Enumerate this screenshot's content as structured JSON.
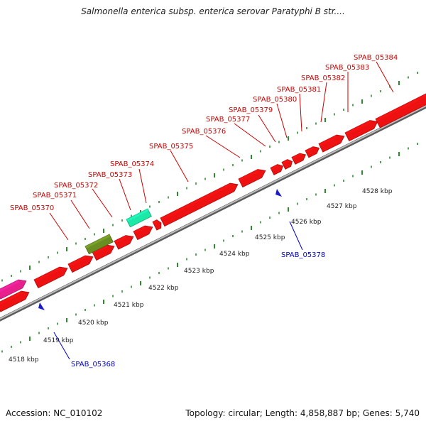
{
  "title": "Salmonella enterica subsp. enterica serovar Paratyphi B str....",
  "footer": {
    "accession": "Accession: NC_010102",
    "summary": "Topology: circular; Length: 4,858,887 bp; Genes: 5,740"
  },
  "colors": {
    "gene_red": "#ee1111",
    "gene_magenta": "#e8208e",
    "gene_olive": "#6b8e23",
    "gene_aqua": "#1de9a6",
    "tick_green": "#2e8b2e",
    "label_red": "#cc0000",
    "label_blue": "#0000cc",
    "backbone": "#999999"
  },
  "scale_labels": [
    "4518 kbp",
    "4519 kbp",
    "4520 kbp",
    "4521 kbp",
    "4522 kbp",
    "4523 kbp",
    "4524 kbp",
    "4525 kbp",
    "4526 kbp",
    "4527 kbp",
    "4528 kbp"
  ],
  "top_labels": [
    "SPAB_05370",
    "SPAB_05371",
    "SPAB_05372",
    "SPAB_05373",
    "SPAB_05374",
    "SPAB_05375",
    "SPAB_05376",
    "SPAB_05377",
    "SPAB_05379",
    "SPAB_05380",
    "SPAB_05381",
    "SPAB_05382",
    "SPAB_05383",
    "SPAB_05384"
  ],
  "bottom_labels": [
    "SPAB_05368",
    "SPAB_05378"
  ]
}
